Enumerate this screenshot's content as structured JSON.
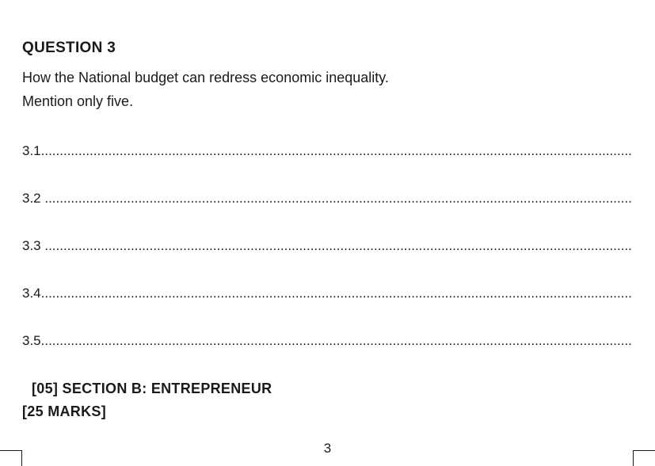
{
  "question": {
    "heading": "QUESTION 3",
    "prompt_line1": "How the National budget can redress economic inequality.",
    "prompt_line2": "Mention only five."
  },
  "answers": [
    {
      "num": "3.1",
      "dots": "...................................................................................................................................................................."
    },
    {
      "num": "3.2",
      "dots": " .................................................................................................................................................................."
    },
    {
      "num": "3.3",
      "dots": " .................................................................................................................................................................."
    },
    {
      "num": "3.4",
      "dots": "......................................................................................................................................................................"
    },
    {
      "num": "3.5",
      "dots": "......................................................................................................................................................................"
    }
  ],
  "section": {
    "line1": "[05]   SECTION B: ENTREPRENEUR",
    "line2": "[25 MARKS]"
  },
  "page_number": "3",
  "colors": {
    "background": "#ffffff",
    "text": "#1a1a1a"
  },
  "typography": {
    "heading_fontsize": 19,
    "body_fontsize": 18,
    "answer_fontsize": 17
  }
}
